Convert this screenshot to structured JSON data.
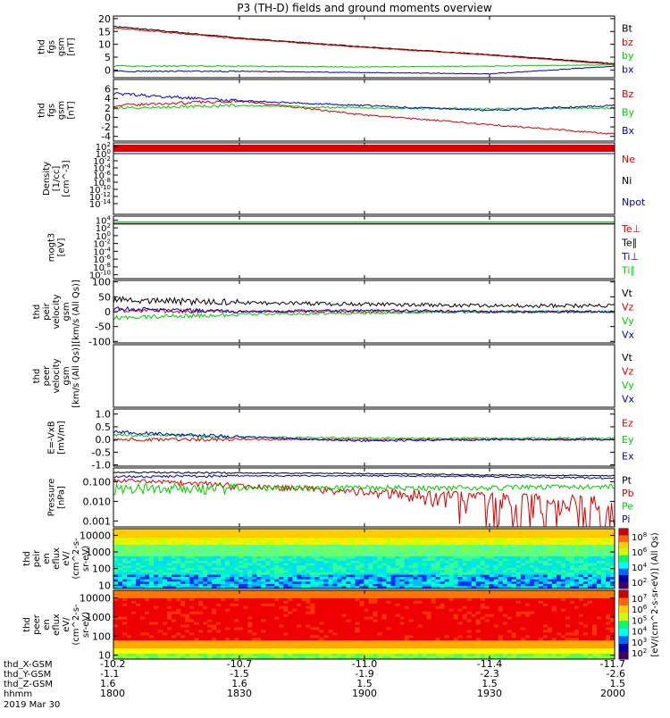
{
  "title": "P3 (TH-D) fields and ground moments overview",
  "colors": {
    "black": "#000000",
    "red": "#dd0000",
    "green": "#00cc00",
    "blue": "#0000cc"
  },
  "chart_data": [
    {
      "type": "line",
      "panel": "fgs",
      "ylabel_lines": [
        "thd",
        "fgs",
        "gsm",
        "[nT]"
      ],
      "ylim": [
        -3,
        21
      ],
      "yticks": [
        "20",
        "15",
        "10",
        "5",
        "0"
      ],
      "yticks_values": [
        20,
        15,
        10,
        5,
        0
      ],
      "x": [
        1800,
        1830,
        1900,
        1930,
        2000
      ],
      "series": [
        {
          "name": "Bt",
          "color": "black",
          "values": [
            17,
            12.5,
            9,
            6,
            2.5
          ]
        },
        {
          "name": "bz",
          "color": "red",
          "values": [
            16.5,
            12.2,
            8.8,
            5.8,
            2.2
          ]
        },
        {
          "name": "by",
          "color": "green",
          "values": [
            1.5,
            1.5,
            1.2,
            1.5,
            2.0
          ]
        },
        {
          "name": "bx",
          "color": "blue",
          "values": [
            -0.5,
            -0.5,
            -1,
            -1.5,
            1.5
          ]
        }
      ]
    },
    {
      "type": "line",
      "panel": "fgs-gsm-sm",
      "ylabel_lines": [
        "thd",
        "fgs",
        "gsm",
        "[nT]"
      ],
      "ylim": [
        -5,
        8
      ],
      "yticks": [
        "6",
        "4",
        "2",
        "0",
        "-2",
        "-4"
      ],
      "yticks_values": [
        6,
        4,
        2,
        0,
        -2,
        -4
      ],
      "x": [
        1800,
        1830,
        1900,
        1930,
        2000
      ],
      "series": [
        {
          "name": "Bz",
          "color": "red",
          "values": [
            2.5,
            3.5,
            0.5,
            -1.5,
            -3.5
          ]
        },
        {
          "name": "By",
          "color": "green",
          "values": [
            2.0,
            2.5,
            2.0,
            1.8,
            2.0
          ]
        },
        {
          "name": "Bx",
          "color": "blue",
          "values": [
            5.0,
            3.5,
            2.5,
            1.5,
            2.5
          ]
        }
      ]
    },
    {
      "type": "line",
      "panel": "density",
      "ylabel_lines": [
        "Density",
        "[1/cc]",
        "[cm^-3]"
      ],
      "ylim_log": [
        -17,
        3
      ],
      "ytick_exps": [
        2,
        0,
        -2,
        -4,
        -6,
        -8,
        -10,
        -12,
        -14
      ],
      "series": [
        {
          "name": "Ne",
          "color": "red",
          "values": [
            1,
            1,
            1,
            1,
            1
          ]
        },
        {
          "name": "Ni",
          "color": "black",
          "values": [
            1,
            1,
            1,
            1,
            1
          ]
        },
        {
          "name": "Npot",
          "color": "blue",
          "values": [
            1,
            1,
            1,
            1,
            1
          ]
        }
      ]
    },
    {
      "type": "line",
      "panel": "temperature",
      "ylabel_lines": [
        "mogt3",
        "[eV]"
      ],
      "ylim_log": [
        -11,
        5
      ],
      "ytick_exps": [
        4,
        2,
        0,
        -2,
        -4,
        -6,
        -8,
        -10
      ],
      "series": [
        {
          "name": "Te⊥",
          "color": "red",
          "values": [
            1000,
            1000,
            1000,
            1000,
            1000
          ]
        },
        {
          "name": "Te∥",
          "color": "black",
          "values": [
            1000,
            1000,
            1000,
            1000,
            1000
          ]
        },
        {
          "name": "Ti⊥",
          "color": "blue",
          "values": [
            3000,
            3000,
            3000,
            3000,
            3000
          ]
        },
        {
          "name": "Ti∥",
          "color": "green",
          "values": [
            3000,
            3000,
            3000,
            3000,
            3000
          ]
        }
      ]
    },
    {
      "type": "line",
      "panel": "peir-velocity",
      "ylabel_lines": [
        "thd",
        "peir",
        "velocity",
        "gsm",
        "[km/s (All Qs)]"
      ],
      "ylim": [
        -105,
        105
      ],
      "yticks": [
        "100",
        "50",
        "0",
        "-50",
        "-100"
      ],
      "yticks_values": [
        100,
        50,
        0,
        -50,
        -100
      ],
      "x": [
        1800,
        1830,
        1900,
        1930,
        2000
      ],
      "series": [
        {
          "name": "Vt",
          "color": "black",
          "values": [
            40,
            30,
            25,
            20,
            20
          ]
        },
        {
          "name": "Vz",
          "color": "red",
          "values": [
            5,
            0,
            0,
            0,
            0
          ]
        },
        {
          "name": "Vy",
          "color": "green",
          "values": [
            -20,
            -10,
            -5,
            0,
            0
          ]
        },
        {
          "name": "Vx",
          "color": "blue",
          "values": [
            10,
            0,
            5,
            0,
            0
          ]
        }
      ]
    },
    {
      "type": "line",
      "panel": "peer-velocity",
      "ylabel_lines": [
        "thd",
        "peer",
        "velocity",
        "gsm",
        "[km/s (All Qs)]"
      ],
      "series": [
        {
          "name": "Vt",
          "color": "black"
        },
        {
          "name": "Vz",
          "color": "red"
        },
        {
          "name": "Vy",
          "color": "green"
        },
        {
          "name": "Vx",
          "color": "blue"
        }
      ]
    },
    {
      "type": "line",
      "panel": "efield",
      "ylabel_lines": [
        "E=-VxB",
        "[mV/m]"
      ],
      "ylim": [
        -1.05,
        1.2
      ],
      "yticks": [
        "1.0",
        "0.5",
        "0.0",
        "-0.5",
        "-1.0"
      ],
      "yticks_values": [
        1.0,
        0.5,
        0.0,
        -0.5,
        -1.0
      ],
      "x": [
        1800,
        1830,
        1900,
        1930,
        2000
      ],
      "series": [
        {
          "name": "Ez",
          "color": "red",
          "values": [
            0,
            0,
            0,
            0,
            0
          ]
        },
        {
          "name": "Ey",
          "color": "green",
          "values": [
            0.2,
            0.1,
            0.05,
            0.05,
            0.05
          ]
        },
        {
          "name": "Ex",
          "color": "blue",
          "values": [
            0.3,
            0.1,
            -0.05,
            0,
            0
          ]
        }
      ]
    },
    {
      "type": "line",
      "panel": "pressure",
      "ylabel_lines": [
        "Pressure",
        "[nPa]"
      ],
      "ylim_log": [
        -3.3,
        -0.3
      ],
      "yticks": [
        "0.100",
        "0.010",
        "0.001"
      ],
      "yticks_values": [
        0.1,
        0.01,
        0.001
      ],
      "x": [
        1800,
        1830,
        1900,
        1930,
        2000
      ],
      "series": [
        {
          "name": "Pt",
          "color": "black",
          "values": [
            0.3,
            0.28,
            0.26,
            0.22,
            0.2
          ]
        },
        {
          "name": "Pb",
          "color": "red",
          "values": [
            0.12,
            0.06,
            0.03,
            0.012,
            0.002
          ]
        },
        {
          "name": "Pe",
          "color": "green",
          "values": [
            0.05,
            0.05,
            0.05,
            0.05,
            0.06
          ]
        },
        {
          "name": "Pi",
          "color": "blue",
          "values": [
            0.18,
            0.2,
            0.2,
            0.18,
            0.15
          ]
        }
      ]
    },
    {
      "type": "heatmap",
      "panel": "peir-eflux",
      "ylabel_lines": [
        "thd",
        "peir",
        "en",
        "eflux",
        "eV/",
        "(cm^2-s-",
        "sr-eV)"
      ],
      "ylim_log": [
        0.8,
        4.4
      ],
      "yticks": [
        "10000",
        "1000",
        "100",
        "10"
      ],
      "yticks_values": [
        10000,
        1000,
        100,
        10
      ],
      "colorbar_ticks": [
        "10^8",
        "10^6",
        "10^4",
        "10^2"
      ]
    },
    {
      "type": "heatmap",
      "panel": "peer-eflux",
      "ylabel_lines": [
        "thd",
        "peer",
        "en",
        "eflux",
        "eV/",
        "(cm^2-s-",
        "sr-eV)"
      ],
      "ylim_log": [
        0.8,
        4.4
      ],
      "yticks": [
        "10000",
        "1000",
        "100",
        "10"
      ],
      "yticks_values": [
        10000,
        1000,
        100,
        10
      ],
      "colorbar_ticks": [
        "10^7",
        "10^6",
        "10^5",
        "10^4",
        "10^3",
        "10^2"
      ]
    }
  ],
  "colorbar_label": "[eV/(cm^2-s-sr-eV)] (All Qs)",
  "xaxis": {
    "rows": [
      {
        "label": "thd_X-GSM",
        "values": [
          "-10.2",
          "-10.7",
          "-11.0",
          "-11.4",
          "-11.7"
        ]
      },
      {
        "label": "thd_Y-GSM",
        "values": [
          "-1.1",
          "-1.5",
          "-1.9",
          "-2.3",
          "-2.6"
        ]
      },
      {
        "label": "thd_Z-GSM",
        "values": [
          "1.6",
          "1.6",
          "1.5",
          "1.5",
          "1.5"
        ]
      },
      {
        "label": "hhmm",
        "values": [
          "1800",
          "1830",
          "1900",
          "1930",
          "2000"
        ]
      }
    ],
    "date": "2019 Mar 30"
  }
}
